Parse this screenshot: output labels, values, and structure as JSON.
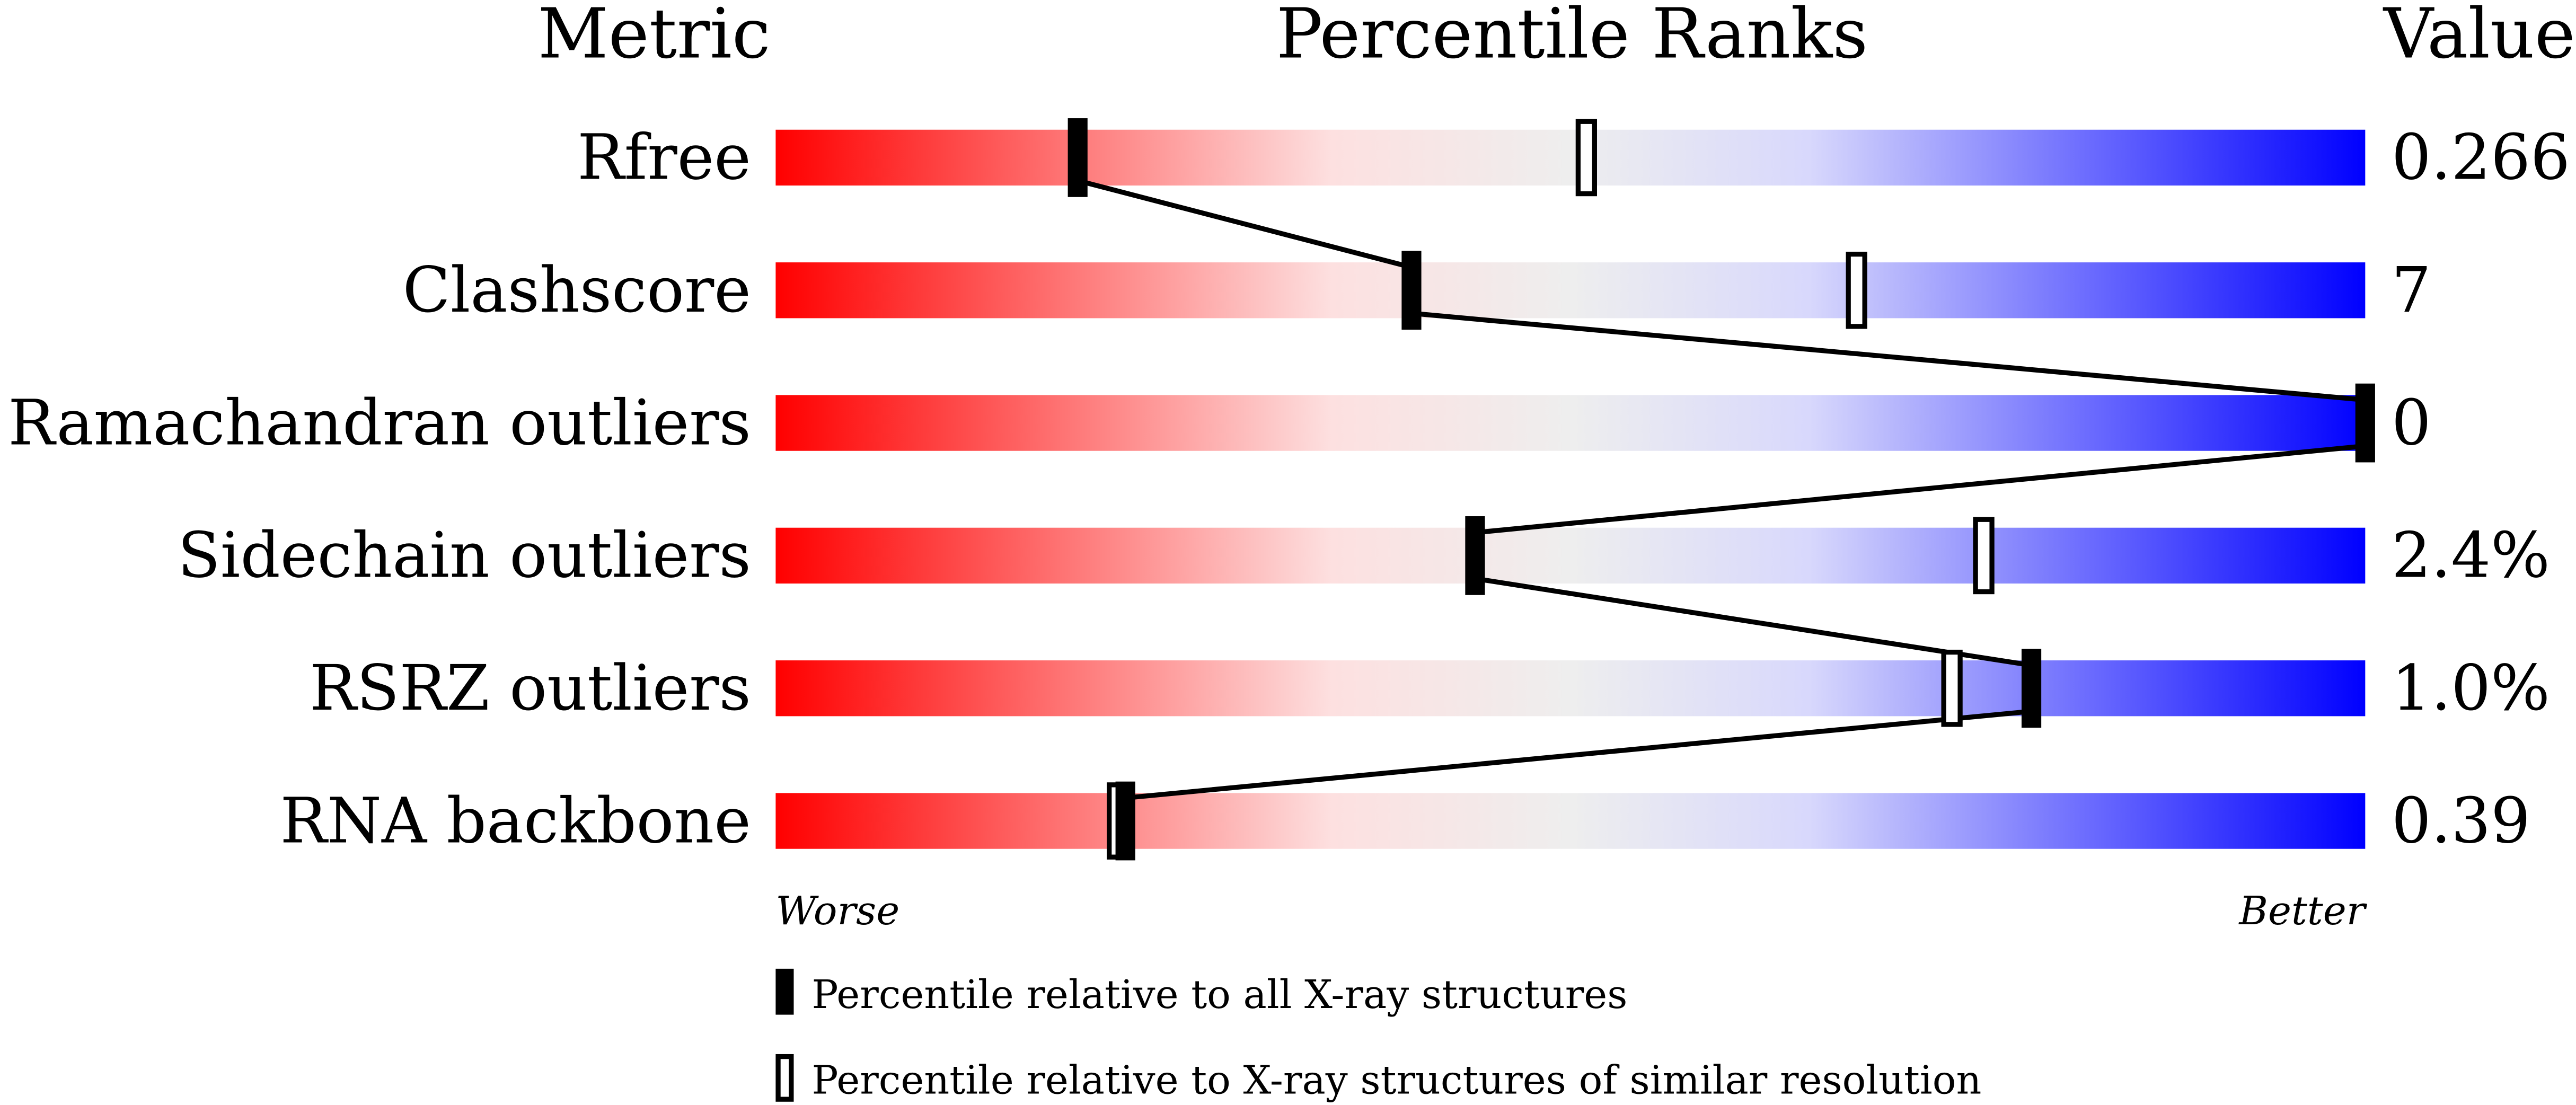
{
  "chart_data": {
    "type": "bar",
    "headers": {
      "metric": "Metric",
      "ranks": "Percentile Ranks",
      "value": "Value"
    },
    "xlim": [
      0,
      100
    ],
    "axis_labels": {
      "left": "Worse",
      "right": "Better"
    },
    "gradient_colors": [
      "#ff0000",
      "#fde0e0",
      "#eeeeee",
      "#d8d8fc",
      "#0000ff"
    ],
    "rows": [
      {
        "metric": "Rfree",
        "value": "0.266",
        "percentile_all": 19,
        "percentile_similar": 51
      },
      {
        "metric": "Clashscore",
        "value": "7",
        "percentile_all": 40,
        "percentile_similar": 68
      },
      {
        "metric": "Ramachandran outliers",
        "value": "0",
        "percentile_all": 100,
        "percentile_similar": null
      },
      {
        "metric": "Sidechain outliers",
        "value": "2.4%",
        "percentile_all": 44,
        "percentile_similar": 76
      },
      {
        "metric": "RSRZ outliers",
        "value": "1.0%",
        "percentile_all": 79,
        "percentile_similar": 74
      },
      {
        "metric": "RNA backbone",
        "value": "0.39",
        "percentile_all": 22,
        "percentile_similar": 21.5
      }
    ],
    "legend": [
      {
        "marker": "filled",
        "label": "Percentile relative to all X-ray structures"
      },
      {
        "marker": "open",
        "label": "Percentile relative to X-ray structures of similar resolution"
      }
    ]
  }
}
